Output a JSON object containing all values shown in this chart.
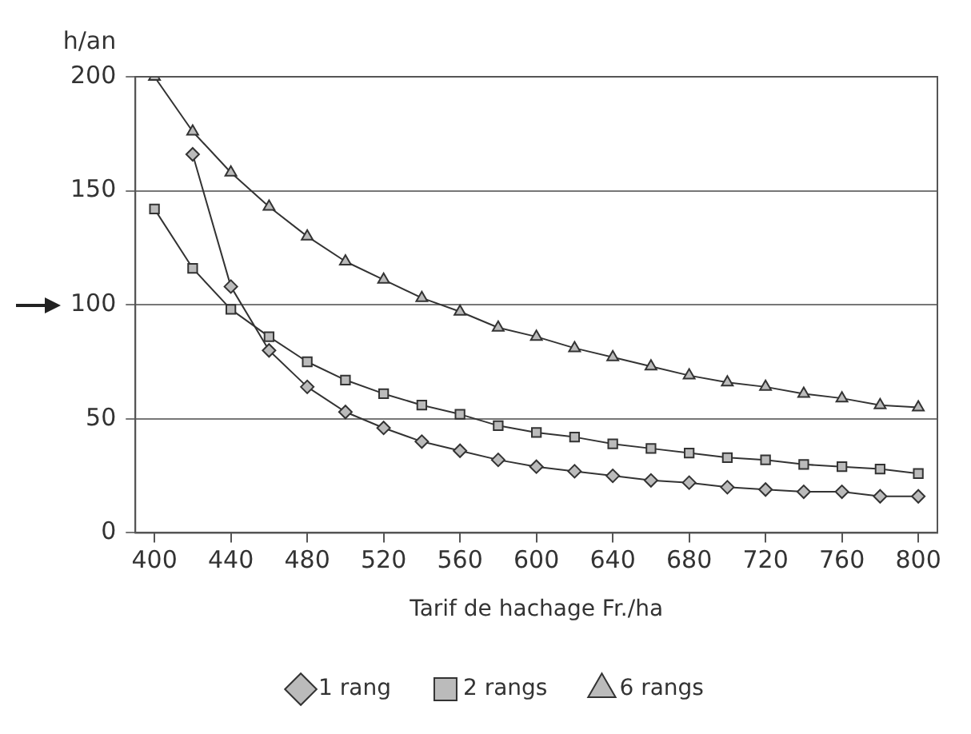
{
  "chart_data": {
    "type": "line",
    "ylabel": "h/an",
    "xlabel": "Tarif de hachage Fr./ha",
    "x": [
      400,
      420,
      440,
      460,
      480,
      500,
      520,
      540,
      560,
      580,
      600,
      620,
      640,
      660,
      680,
      700,
      720,
      740,
      760,
      780,
      800
    ],
    "xlim": [
      390,
      810
    ],
    "xticks": [
      400,
      440,
      480,
      520,
      560,
      600,
      640,
      680,
      720,
      760,
      800
    ],
    "ylim": [
      0,
      200
    ],
    "yticks": [
      0,
      50,
      100,
      150,
      200
    ],
    "grid": "y",
    "legend": "bottom",
    "line_style": "solid",
    "series": [
      {
        "name": "1 rang",
        "color": "#333333",
        "marker": "diamond",
        "values": [
          null,
          166,
          108,
          80,
          64,
          53,
          46,
          40,
          36,
          32,
          29,
          27,
          25,
          23,
          22,
          20,
          19,
          18,
          18,
          16,
          16
        ]
      },
      {
        "name": "2 rangs",
        "color": "#333333",
        "marker": "square",
        "values": [
          142,
          116,
          98,
          86,
          75,
          67,
          61,
          56,
          52,
          47,
          44,
          42,
          39,
          37,
          35,
          33,
          32,
          30,
          29,
          28,
          26
        ]
      },
      {
        "name": "6 rangs",
        "color": "#333333",
        "marker": "triangle",
        "values": [
          200,
          176,
          158,
          143,
          130,
          119,
          111,
          103,
          97,
          90,
          86,
          81,
          77,
          73,
          69,
          66,
          64,
          61,
          59,
          56,
          55
        ]
      }
    ]
  }
}
